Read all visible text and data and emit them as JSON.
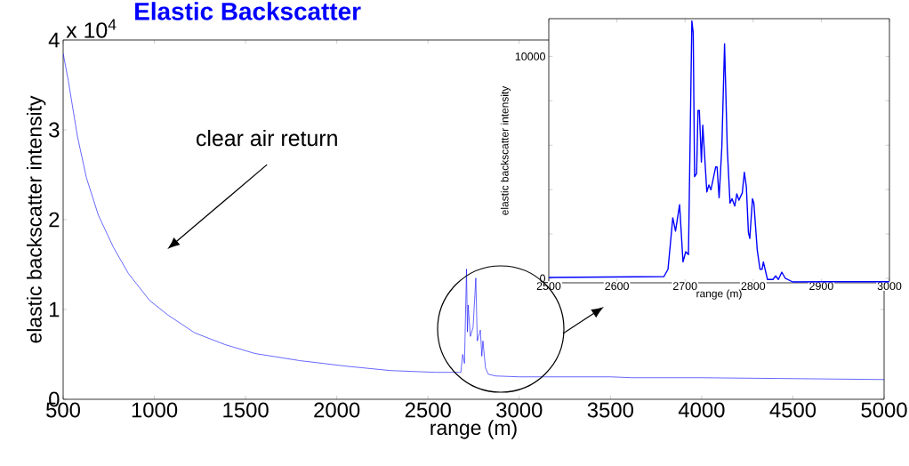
{
  "chart_data": [
    {
      "type": "line",
      "title": "Elastic Backscatter",
      "xlabel": "range (m)",
      "ylabel": "elastic backscatter intensity",
      "color": "#0000ff",
      "annotations": [
        "x 10$^{4}$",
        "clear air return"
      ],
      "x": [
        500,
        528,
        578,
        627,
        693,
        776,
        858,
        974,
        1073,
        1221,
        1386,
        1551,
        1799,
        2046,
        2294,
        2541,
        2680,
        2690,
        2700,
        2711,
        2716,
        2720,
        2732,
        2747,
        2762,
        2770,
        2787,
        2795,
        2801,
        2815,
        2830,
        2870,
        3000,
        3500,
        3620,
        4000,
        4500,
        5000
      ],
      "values": [
        3.85,
        3.55,
        2.93,
        2.47,
        2.05,
        1.69,
        1.4,
        1.1,
        0.94,
        0.74,
        0.61,
        0.51,
        0.43,
        0.37,
        0.32,
        0.3,
        0.3,
        0.5,
        0.4,
        1.45,
        0.75,
        1.05,
        0.7,
        0.8,
        1.35,
        0.65,
        0.77,
        0.48,
        0.65,
        0.35,
        0.28,
        0.26,
        0.25,
        0.25,
        0.24,
        0.24,
        0.23,
        0.22
      ],
      "xlim": [
        500,
        5000
      ],
      "ylim": [
        0,
        4
      ],
      "xticks": [
        500,
        1000,
        1500,
        2000,
        2500,
        3000,
        3500,
        4000,
        4500,
        5000
      ],
      "yticks": [
        0,
        1,
        2,
        3,
        4
      ]
    },
    {
      "type": "line",
      "xlabel": "range (m)",
      "ylabel": "elastic backscatter intensity",
      "color": "#0000ff",
      "x": [
        2500,
        2669,
        2675,
        2682,
        2686,
        2692,
        2697,
        2701,
        2705,
        2710,
        2712,
        2714,
        2717,
        2719,
        2721,
        2724,
        2726,
        2732,
        2735,
        2738,
        2742,
        2745,
        2747,
        2750,
        2754,
        2758,
        2762,
        2766,
        2769,
        2773,
        2776,
        2779,
        2784,
        2787,
        2790,
        2793,
        2795,
        2799,
        2801,
        2806,
        2810,
        2813,
        2815,
        2821,
        2829,
        2833,
        2837,
        2842,
        2847,
        2858,
        2912,
        3000
      ],
      "values": [
        40,
        80,
        410,
        2730,
        2130,
        3320,
        740,
        1200,
        1070,
        11600,
        11070,
        4580,
        4720,
        7560,
        7560,
        5240,
        6900,
        3890,
        4210,
        3990,
        4580,
        5020,
        5020,
        3630,
        5910,
        10570,
        5840,
        3390,
        3590,
        3260,
        3810,
        3520,
        3850,
        4780,
        4120,
        2070,
        1800,
        3590,
        3390,
        1270,
        410,
        410,
        740,
        -50,
        -50,
        110,
        -50,
        280,
        10,
        -160,
        -150,
        -150
      ],
      "xlim": [
        2500,
        3000
      ],
      "ylim": [
        -200,
        11700
      ],
      "xticks": [
        2500,
        2600,
        2700,
        2800,
        2900,
        3000
      ],
      "yticks": [
        0,
        {
          "value": 2000,
          "label": null
        },
        {
          "value": 4000,
          "label": null
        },
        {
          "value": 6000,
          "label": null
        },
        {
          "value": 8000,
          "label": null
        },
        10000
      ]
    }
  ]
}
